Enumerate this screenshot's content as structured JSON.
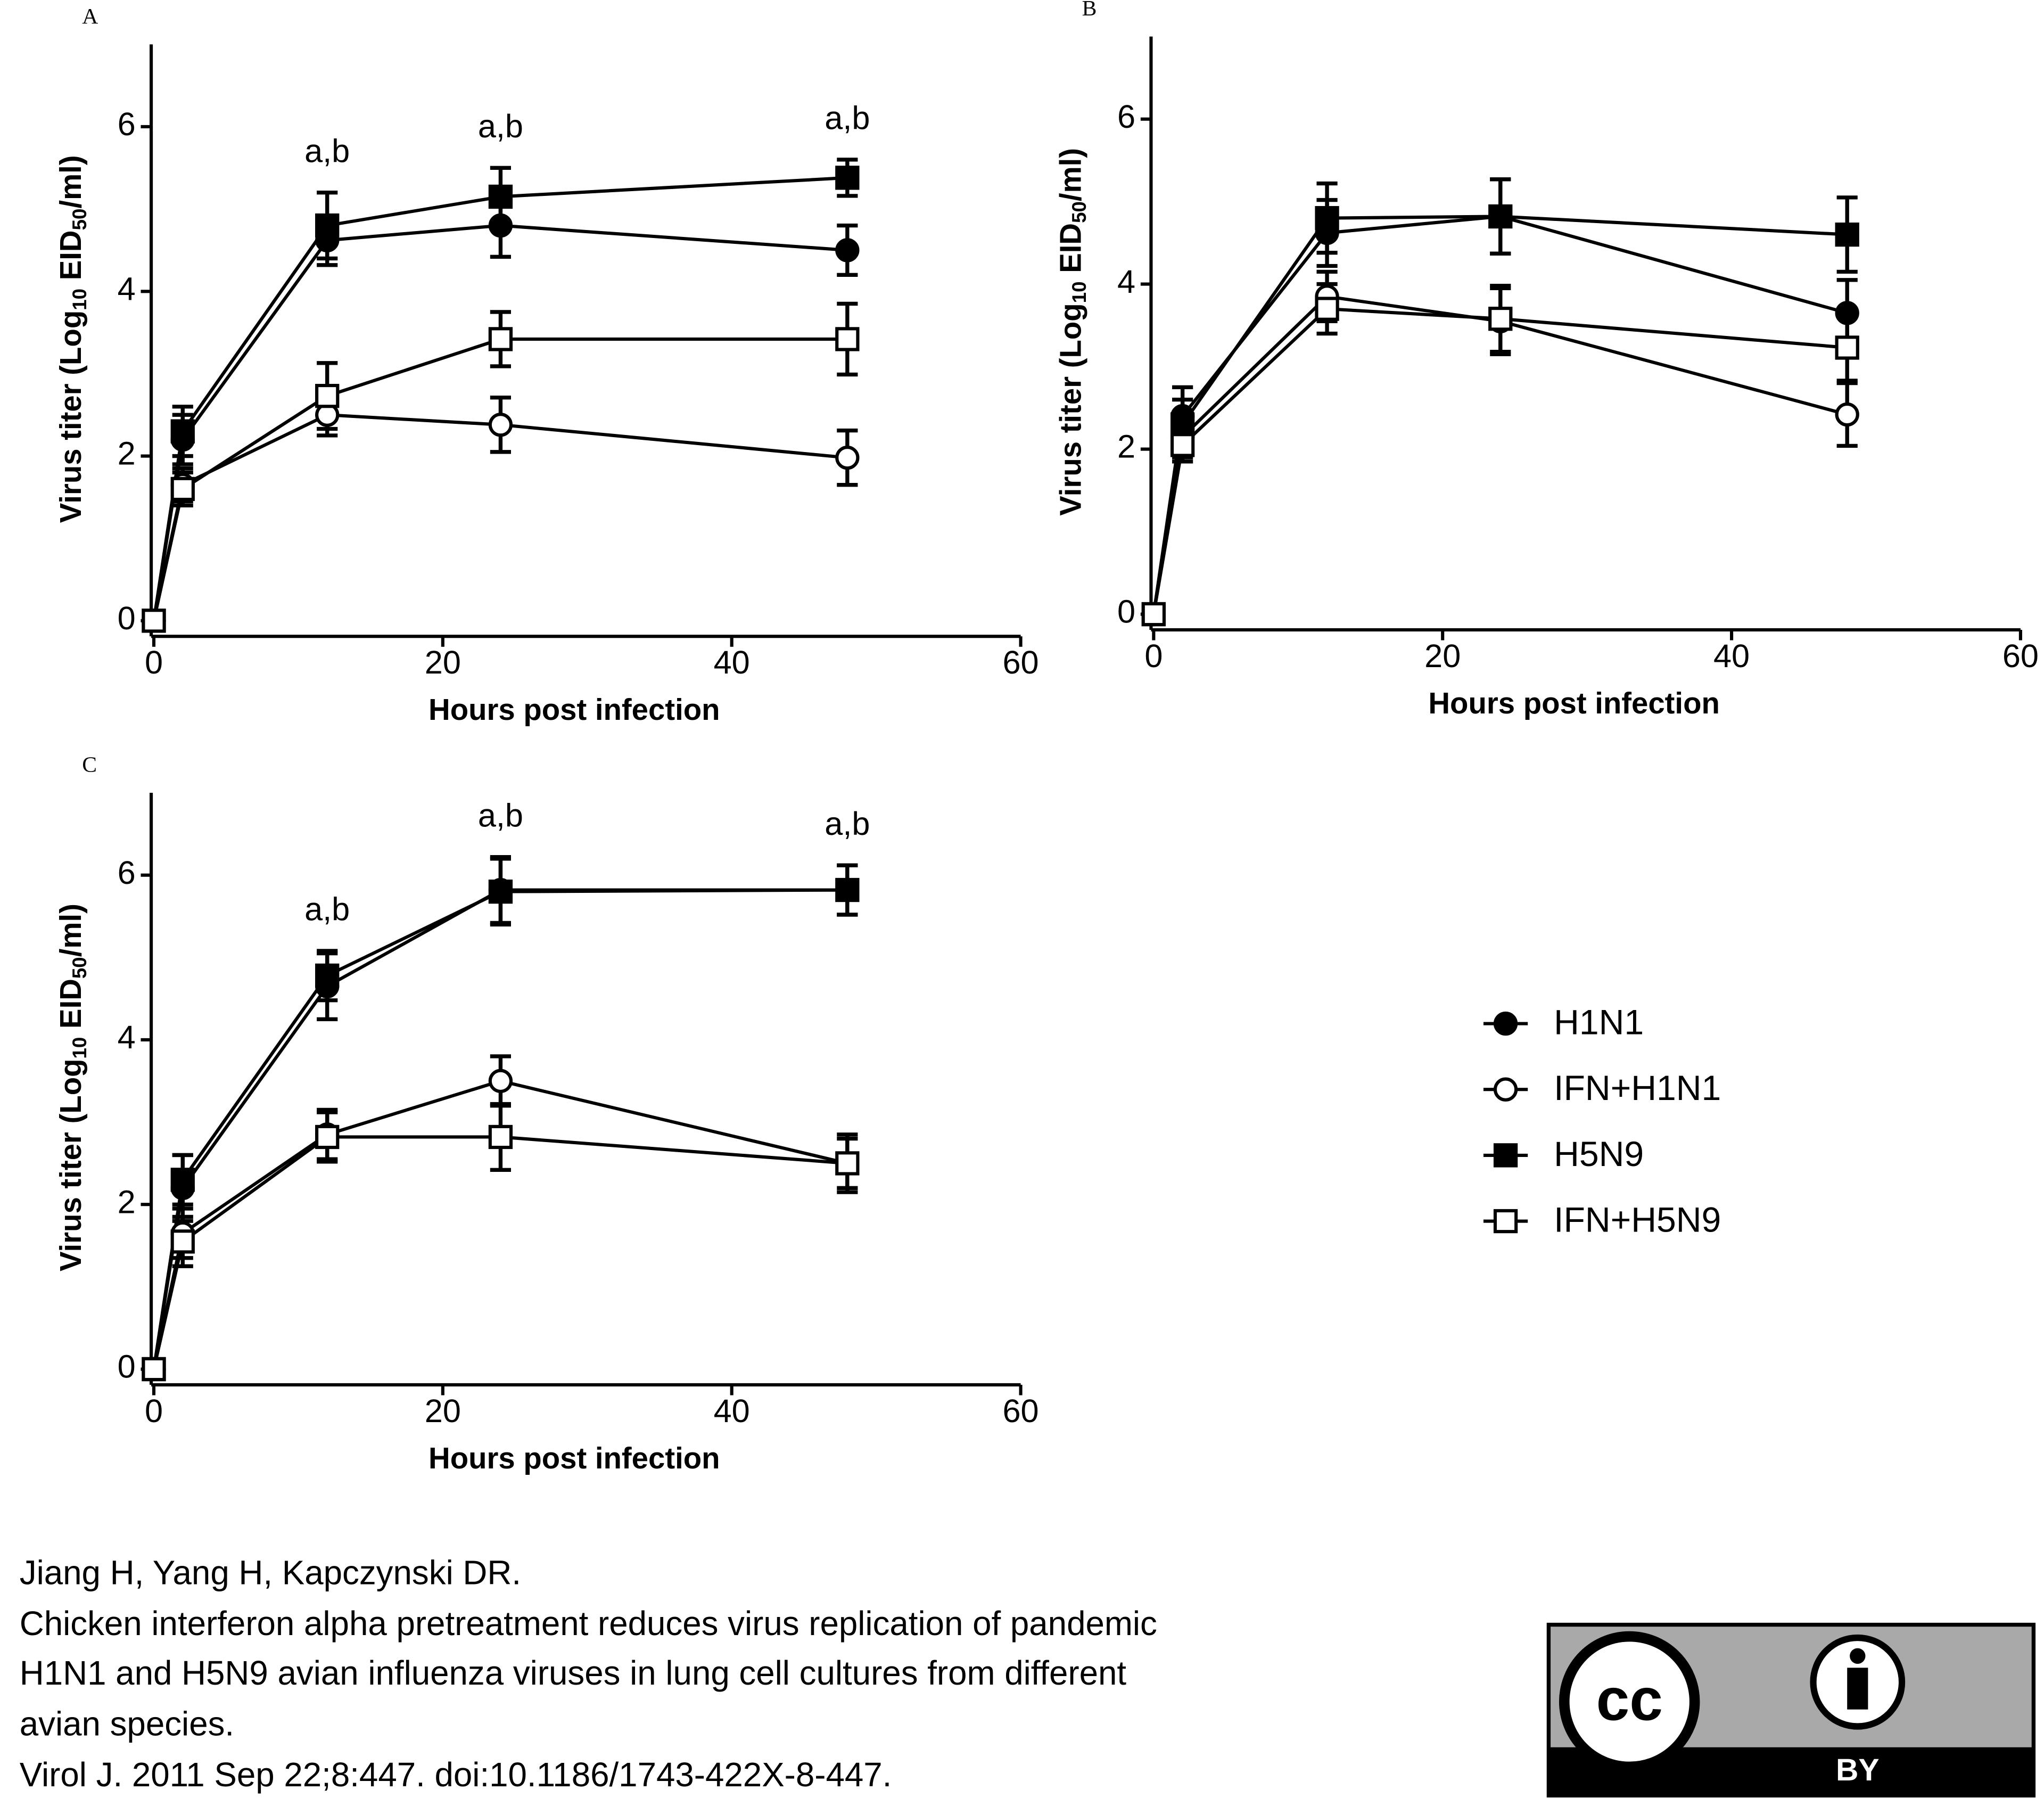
{
  "chart_data": [
    {
      "type": "line",
      "panel": "A",
      "x_label": "Hours post infection",
      "y_label": [
        {
          "text": "Virus titer (Log"
        },
        {
          "text": "10",
          "sub": true
        },
        {
          "text": " EID"
        },
        {
          "text": "50",
          "sub": true
        },
        {
          "text": "/ml)"
        }
      ],
      "x": [
        0,
        2,
        12,
        24,
        48
      ],
      "xlim": [
        0,
        60
      ],
      "xticks": [
        0,
        20,
        40,
        60
      ],
      "ylim": [
        0,
        7
      ],
      "yticks": [
        0,
        2,
        4,
        6
      ],
      "series": [
        {
          "name": "H1N1",
          "color": "#000",
          "marker": "circle",
          "filled": true,
          "values": [
            0,
            2.2,
            4.62,
            4.8,
            4.5
          ],
          "errors": [
            0,
            0.3,
            0.3,
            0.38,
            0.3
          ]
        },
        {
          "name": "IFN+H1N1",
          "color": "#000",
          "marker": "circle",
          "filled": false,
          "values": [
            0,
            1.65,
            2.5,
            2.38,
            1.98
          ],
          "errors": [
            0,
            0.2,
            0.25,
            0.33,
            0.33
          ]
        },
        {
          "name": "H5N9",
          "color": "#000",
          "marker": "square",
          "filled": true,
          "values": [
            0,
            2.3,
            4.8,
            5.15,
            5.38
          ],
          "errors": [
            0,
            0.3,
            0.4,
            0.35,
            0.22
          ]
        },
        {
          "name": "IFN+H5N9",
          "color": "#000",
          "marker": "square",
          "filled": false,
          "values": [
            0,
            1.6,
            2.73,
            3.42,
            3.42
          ],
          "errors": [
            0,
            0.2,
            0.4,
            0.33,
            0.43
          ]
        }
      ],
      "annotations": [
        {
          "x": 12,
          "text": "a,b"
        },
        {
          "x": 24,
          "text": "a,b"
        },
        {
          "x": 48,
          "text": "a,b"
        }
      ]
    },
    {
      "type": "line",
      "panel": "B",
      "x_label": "Hours post infection",
      "y_label": [
        {
          "text": "Virus titer (Log"
        },
        {
          "text": "10",
          "sub": true
        },
        {
          "text": " EID"
        },
        {
          "text": "50",
          "sub": true
        },
        {
          "text": "/ml)"
        }
      ],
      "x": [
        0,
        2,
        12,
        24,
        48
      ],
      "xlim": [
        0,
        60
      ],
      "xticks": [
        0,
        20,
        40,
        60
      ],
      "ylim": [
        0,
        7
      ],
      "yticks": [
        0,
        2,
        4,
        6
      ],
      "series": [
        {
          "name": "H1N1",
          "color": "#000",
          "marker": "circle",
          "filled": true,
          "values": [
            0,
            2.4,
            4.62,
            4.82,
            3.65
          ],
          "errors": [
            0,
            0.35,
            0.4,
            0.45,
            0.4
          ]
        },
        {
          "name": "IFN+H1N1",
          "color": "#000",
          "marker": "circle",
          "filled": false,
          "values": [
            0,
            2.15,
            3.85,
            3.55,
            2.42
          ],
          "errors": [
            0,
            0.25,
            0.3,
            0.4,
            0.38
          ]
        },
        {
          "name": "H5N9",
          "color": "#000",
          "marker": "square",
          "filled": true,
          "values": [
            0,
            2.3,
            4.8,
            4.82,
            4.6
          ],
          "errors": [
            0,
            0.3,
            0.42,
            0.45,
            0.45
          ]
        },
        {
          "name": "IFN+H5N9",
          "color": "#000",
          "marker": "square",
          "filled": false,
          "values": [
            0,
            2.05,
            3.7,
            3.58,
            3.23
          ],
          "errors": [
            0,
            0.2,
            0.3,
            0.4,
            0.4
          ]
        }
      ]
    },
    {
      "type": "line",
      "panel": "C",
      "x_label": "Hours post infection",
      "y_label": [
        {
          "text": "Virus titer (Log"
        },
        {
          "text": "10",
          "sub": true
        },
        {
          "text": " EID"
        },
        {
          "text": "50",
          "sub": true
        },
        {
          "text": "/ml)"
        }
      ],
      "x": [
        0,
        2,
        12,
        24,
        48
      ],
      "xlim": [
        0,
        60
      ],
      "xticks": [
        0,
        20,
        40,
        60
      ],
      "ylim": [
        0,
        7
      ],
      "yticks": [
        0,
        2,
        4,
        6
      ],
      "legend": "right",
      "series": [
        {
          "name": "H1N1",
          "color": "#000",
          "marker": "circle",
          "filled": true,
          "values": [
            0,
            2.2,
            4.65,
            5.82,
            5.82
          ],
          "errors": [
            0,
            0.4,
            0.4,
            0.4,
            0.3
          ]
        },
        {
          "name": "IFN+H1N1",
          "color": "#000",
          "marker": "circle",
          "filled": false,
          "values": [
            0,
            1.65,
            2.85,
            3.5,
            2.5
          ],
          "errors": [
            0,
            0.3,
            0.3,
            0.3,
            0.3
          ]
        },
        {
          "name": "H5N9",
          "color": "#000",
          "marker": "square",
          "filled": true,
          "values": [
            0,
            2.3,
            4.78,
            5.8,
            5.82
          ],
          "errors": [
            0,
            0.3,
            0.3,
            0.4,
            0.3
          ]
        },
        {
          "name": "IFN+H5N9",
          "color": "#000",
          "marker": "square",
          "filled": false,
          "values": [
            0,
            1.55,
            2.82,
            2.82,
            2.5
          ],
          "errors": [
            0,
            0.3,
            0.3,
            0.4,
            0.35
          ]
        }
      ],
      "annotations": [
        {
          "x": 12,
          "text": "a,b"
        },
        {
          "x": 24,
          "text": "a,b"
        },
        {
          "x": 48,
          "text": "a,b"
        }
      ]
    }
  ],
  "citation": [
    "Jiang H, Yang H, Kapczynski DR.",
    "Chicken interferon alpha pretreatment reduces virus replication of pandemic",
    "H1N1 and H5N9 avian influenza viruses in lung cell cultures from different",
    "avian species.",
    "Virol J. 2011 Sep 22;8:447. doi:10.1186/1743-422X-8-447."
  ],
  "license": {
    "icon": "cc",
    "label": "BY"
  }
}
